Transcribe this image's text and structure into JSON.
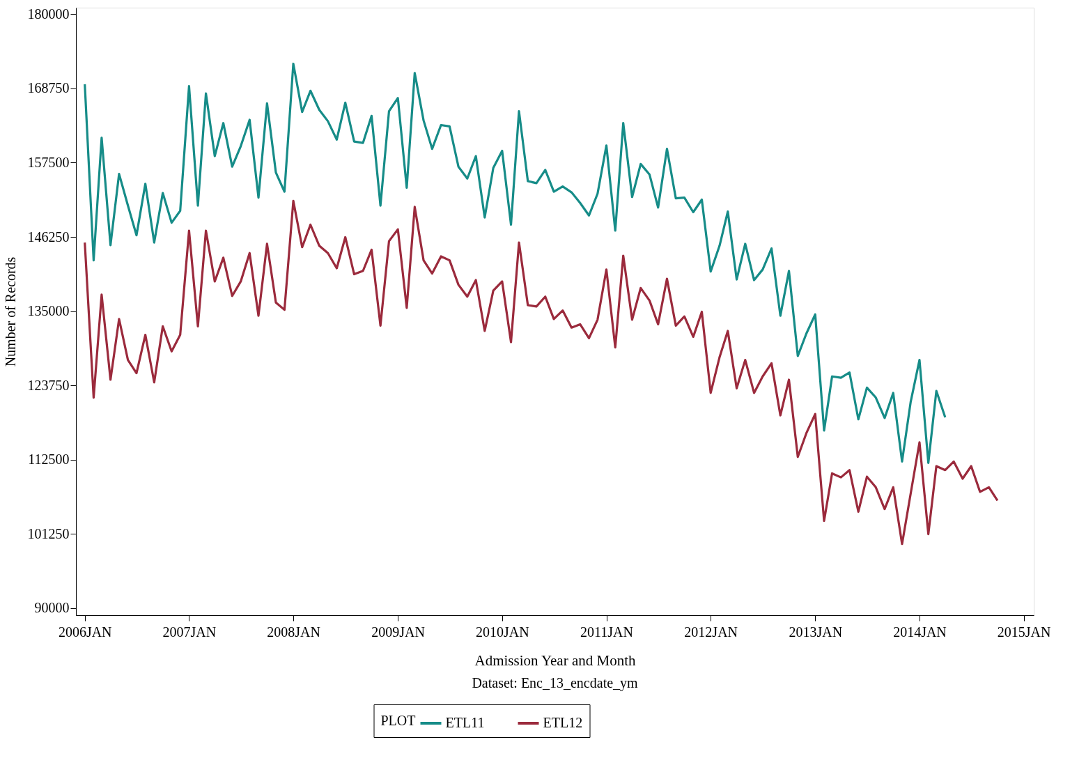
{
  "chart_data": {
    "type": "line",
    "xlabel": "Admission Year and Month",
    "ylabel": "Number of Records",
    "legend_title": "PLOT",
    "annotations": [
      "Dataset: Enc_13_encdate_ym"
    ],
    "x": [
      "2006-01",
      "2006-02",
      "2006-03",
      "2006-04",
      "2006-05",
      "2006-06",
      "2006-07",
      "2006-08",
      "2006-09",
      "2006-10",
      "2006-11",
      "2006-12",
      "2007-01",
      "2007-02",
      "2007-03",
      "2007-04",
      "2007-05",
      "2007-06",
      "2007-07",
      "2007-08",
      "2007-09",
      "2007-10",
      "2007-11",
      "2007-12",
      "2008-01",
      "2008-02",
      "2008-03",
      "2008-04",
      "2008-05",
      "2008-06",
      "2008-07",
      "2008-08",
      "2008-09",
      "2008-10",
      "2008-11",
      "2008-12",
      "2009-01",
      "2009-02",
      "2009-03",
      "2009-04",
      "2009-05",
      "2009-06",
      "2009-07",
      "2009-08",
      "2009-09",
      "2009-10",
      "2009-11",
      "2009-12",
      "2010-01",
      "2010-02",
      "2010-03",
      "2010-04",
      "2010-05",
      "2010-06",
      "2010-07",
      "2010-08",
      "2010-09",
      "2010-10",
      "2010-11",
      "2010-12",
      "2011-01",
      "2011-02",
      "2011-03",
      "2011-04",
      "2011-05",
      "2011-06",
      "2011-07",
      "2011-08",
      "2011-09",
      "2011-10",
      "2011-11",
      "2011-12",
      "2012-01",
      "2012-02",
      "2012-03",
      "2012-04",
      "2012-05",
      "2012-06",
      "2012-07",
      "2012-08",
      "2012-09",
      "2012-10",
      "2012-11",
      "2012-12",
      "2013-01",
      "2013-02",
      "2013-03",
      "2013-04",
      "2013-05",
      "2013-06",
      "2013-07",
      "2013-08",
      "2013-09",
      "2013-10",
      "2013-11",
      "2013-12",
      "2014-01",
      "2014-02",
      "2014-03",
      "2014-04",
      "2014-05",
      "2014-06",
      "2014-07",
      "2014-08",
      "2014-09",
      "2014-10"
    ],
    "series": [
      {
        "name": "ETL11",
        "color": "#168c88",
        "values": [
          169400,
          142700,
          161300,
          145000,
          155800,
          151000,
          146500,
          154300,
          145400,
          152900,
          148400,
          150200,
          169100,
          151000,
          168000,
          158500,
          163500,
          156900,
          160000,
          164000,
          152200,
          166500,
          156000,
          153100,
          172500,
          165200,
          168400,
          165500,
          163800,
          161000,
          166600,
          160700,
          160500,
          164600,
          151000,
          165300,
          167300,
          153700,
          171100,
          163900,
          159600,
          163200,
          163000,
          156900,
          155100,
          158500,
          149200,
          156700,
          159300,
          148100,
          165300,
          154700,
          154400,
          156400,
          153100,
          153900,
          153000,
          151400,
          149500,
          152800,
          160100,
          147200,
          163500,
          152300,
          157300,
          155700,
          150700,
          159600,
          152100,
          152200,
          150000,
          151900,
          141000,
          144900,
          150100,
          139800,
          145200,
          139700,
          141300,
          144500,
          134300,
          141100,
          128200,
          131600,
          134500,
          116900,
          125100,
          124900,
          125700,
          118600,
          123400,
          121900,
          118800,
          122600,
          112200,
          121200,
          127600,
          112000,
          122900,
          118900,
          null,
          null,
          null,
          null,
          null,
          null
        ]
      },
      {
        "name": "ETL12",
        "color": "#9b2a3c",
        "values": [
          145400,
          121900,
          137500,
          124600,
          133800,
          127600,
          125600,
          131400,
          124200,
          132700,
          128900,
          131400,
          147200,
          132700,
          147200,
          139500,
          143100,
          137300,
          139500,
          143800,
          134300,
          145200,
          136300,
          135200,
          151700,
          144700,
          148100,
          144900,
          143800,
          141500,
          146200,
          140600,
          141100,
          144300,
          132800,
          145600,
          147400,
          135500,
          150800,
          142700,
          140700,
          143300,
          142700,
          139000,
          137200,
          139700,
          132000,
          138100,
          139500,
          130300,
          145400,
          135900,
          135700,
          137200,
          133800,
          135100,
          132500,
          133000,
          130900,
          133700,
          141300,
          129500,
          143400,
          133700,
          138500,
          136600,
          133000,
          139900,
          132800,
          134200,
          131100,
          134900,
          122600,
          128000,
          132000,
          123300,
          127600,
          122600,
          125100,
          127100,
          119200,
          124600,
          112900,
          116500,
          119400,
          103200,
          110400,
          109800,
          110900,
          104600,
          109900,
          108300,
          105000,
          108300,
          99700,
          107300,
          115100,
          101200,
          111500,
          110900,
          112200,
          109600,
          111500,
          107600,
          108300,
          106300
        ]
      }
    ],
    "xlim": [
      "2005-12-01",
      "2015-02-05"
    ],
    "xticks": [
      {
        "value": "2006-01",
        "label": "2006JAN"
      },
      {
        "value": "2007-01",
        "label": "2007JAN"
      },
      {
        "value": "2008-01",
        "label": "2008JAN"
      },
      {
        "value": "2009-01",
        "label": "2009JAN"
      },
      {
        "value": "2010-01",
        "label": "2010JAN"
      },
      {
        "value": "2011-01",
        "label": "2011JAN"
      },
      {
        "value": "2012-01",
        "label": "2012JAN"
      },
      {
        "value": "2013-01",
        "label": "2013JAN"
      },
      {
        "value": "2014-01",
        "label": "2014JAN"
      },
      {
        "value": "2015-01",
        "label": "2015JAN"
      }
    ],
    "ylim": [
      88900,
      181000
    ],
    "yticks": [
      90000,
      101250,
      112500,
      123750,
      135000,
      146250,
      157500,
      168750,
      180000
    ],
    "grid": false,
    "legend": "bottom",
    "line_style": "solid"
  }
}
